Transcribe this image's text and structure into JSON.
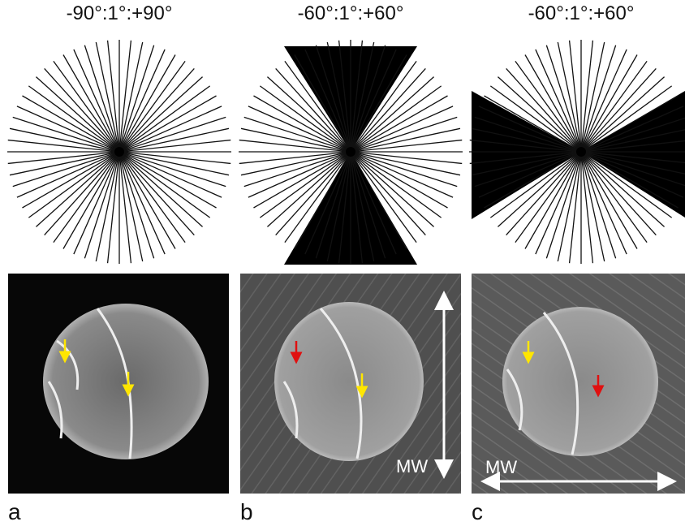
{
  "panels": [
    {
      "title": "-90°:1°:+90°",
      "label": "a"
    },
    {
      "title": "-60°:1°:+60°",
      "label": "b",
      "annotation": "MW"
    },
    {
      "title": "-60°:1°:+60°",
      "label": "c",
      "annotation": "MW"
    }
  ]
}
